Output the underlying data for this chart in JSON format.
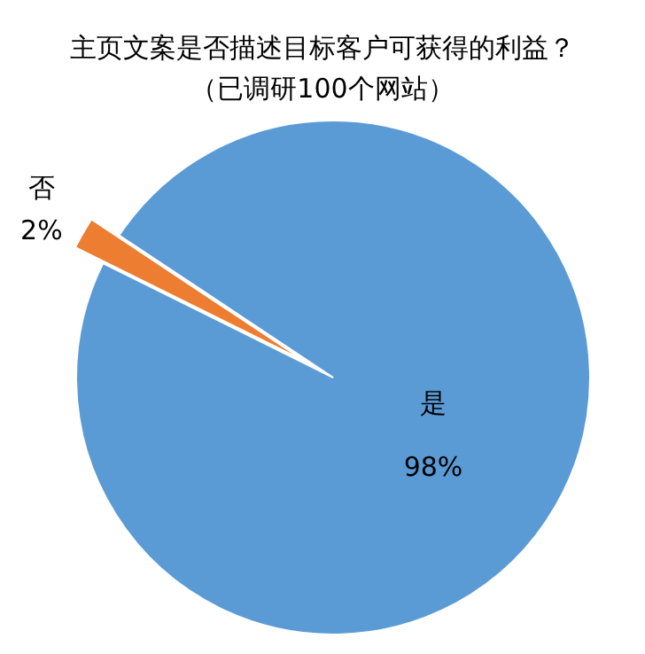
{
  "chart_data": {
    "type": "pie",
    "title": "主页文案是否描述目标客户可获得的利益？",
    "subtitle": "（已调研100个网站）",
    "categories": [
      "是",
      "否"
    ],
    "values": [
      98,
      2
    ],
    "colors": [
      "#5b9bd5",
      "#ed7d31"
    ],
    "value_labels": [
      "98%",
      "2%"
    ]
  }
}
